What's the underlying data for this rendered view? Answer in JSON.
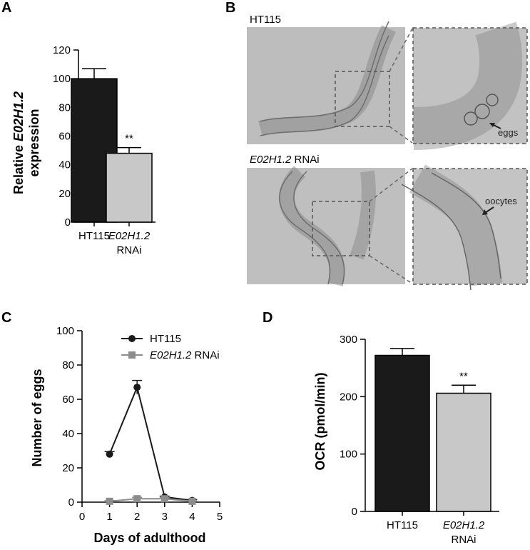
{
  "panels": {
    "A": "A",
    "B": "B",
    "C": "C",
    "D": "D"
  },
  "colors": {
    "ht115": "#1a1a1a",
    "rnai_bar": "#c8c8c8",
    "rnai_line": "#8c8c8c",
    "micrograph_bg": "#bdbdbd"
  },
  "images": {
    "top_label": "HT115",
    "bottom_label_gene": "E02H1.2",
    "bottom_label_suffix": " RNAi",
    "eggs_annotation": "eggs",
    "oocytes_annotation": "oocytes"
  },
  "chart_data": [
    {
      "panel": "A",
      "type": "bar",
      "categories": [
        "HT115",
        "E02H1.2 RNAi"
      ],
      "category_lines": [
        [
          "HT115"
        ],
        [
          "E02H1.2",
          "RNAi"
        ]
      ],
      "values": [
        100,
        48
      ],
      "errors": [
        7,
        4
      ],
      "significance": [
        "",
        "**"
      ],
      "ylabel_prefix": "Relative ",
      "ylabel_gene": "E02H1.2",
      "ylabel_line2": "expression",
      "ylim": [
        0,
        120
      ],
      "yticks": [
        0,
        20,
        40,
        60,
        80,
        100,
        120
      ],
      "colors": [
        "#1a1a1a",
        "#c8c8c8"
      ]
    },
    {
      "panel": "C",
      "type": "line",
      "x": [
        1,
        2,
        3,
        4
      ],
      "series": [
        {
          "name": "HT115",
          "values": [
            28,
            67,
            3,
            1
          ],
          "errors": [
            1.5,
            4,
            0.5,
            0.5
          ],
          "marker": "circle",
          "color": "#1a1a1a"
        },
        {
          "name_gene": "E02H1.2",
          "name_suffix": " RNAi",
          "values": [
            0.5,
            2,
            2,
            0.5
          ],
          "errors": [
            0.5,
            0.8,
            0.8,
            0.3
          ],
          "marker": "square",
          "color": "#8c8c8c"
        }
      ],
      "xlabel": "Days of adulthood",
      "ylabel": "Number of eggs",
      "xlim": [
        0,
        5
      ],
      "ylim": [
        0,
        100
      ],
      "xticks": [
        0,
        1,
        2,
        3,
        4,
        5
      ],
      "yticks": [
        0,
        20,
        40,
        60,
        80,
        100
      ],
      "legend": "top-right"
    },
    {
      "panel": "D",
      "type": "bar",
      "categories": [
        "HT115",
        "E02H1.2 RNAi"
      ],
      "category_lines": [
        [
          "HT115"
        ],
        [
          "E02H1.2",
          "RNAi"
        ]
      ],
      "values": [
        272,
        206
      ],
      "errors": [
        12,
        14
      ],
      "significance": [
        "",
        "**"
      ],
      "ylabel": "OCR (pmol/min)",
      "ylim": [
        0,
        300
      ],
      "yticks": [
        0,
        100,
        200,
        300
      ],
      "colors": [
        "#1a1a1a",
        "#c8c8c8"
      ]
    }
  ]
}
